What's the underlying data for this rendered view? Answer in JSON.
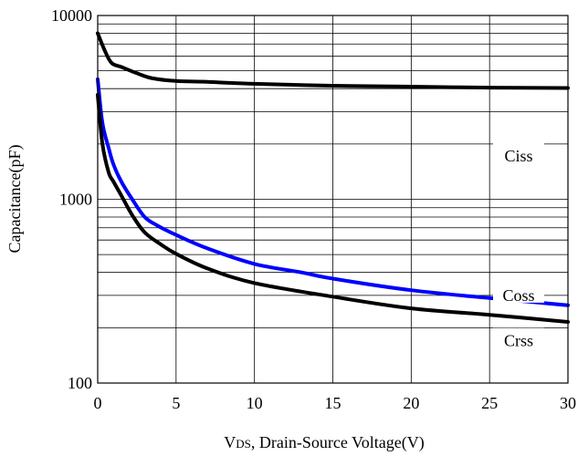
{
  "chart_data": {
    "type": "line",
    "title": "",
    "xlabel": "VDS, Drain-Source Voltage(V)",
    "xlabel_main": "V",
    "xlabel_sub": "DS",
    "xlabel_rest": ", Drain-Source Voltage(V)",
    "ylabel": "Capacitance(pF)",
    "xlim": [
      0,
      30
    ],
    "ylim": [
      100,
      10000
    ],
    "yscale": "log",
    "grid": true,
    "x_ticks": [
      0,
      5,
      10,
      15,
      20,
      25,
      30
    ],
    "x_tick_labels": [
      "0",
      "5",
      "10",
      "15",
      "20",
      "25",
      "30"
    ],
    "y_ticks": [
      100,
      1000,
      10000
    ],
    "y_tick_labels": [
      "100",
      "1000",
      "10000"
    ],
    "series": [
      {
        "name": "Ciss",
        "color": "#000000",
        "x": [
          0,
          0.5,
          0.9,
          1.5,
          2.5,
          3.5,
          5,
          7,
          10,
          15,
          20,
          25,
          30
        ],
        "y": [
          8000,
          6300,
          5500,
          5250,
          4850,
          4550,
          4400,
          4350,
          4250,
          4150,
          4100,
          4050,
          4030
        ]
      },
      {
        "name": "Coss",
        "color": "#0000ff",
        "x": [
          0,
          0.3,
          0.7,
          1,
          1.5,
          2.2,
          3,
          3.8,
          5,
          7,
          10,
          13,
          15,
          20,
          25,
          30
        ],
        "y": [
          4500,
          2600,
          1900,
          1550,
          1250,
          1000,
          800,
          720,
          640,
          540,
          445,
          400,
          370,
          320,
          290,
          265
        ]
      },
      {
        "name": "Crss",
        "color": "#000000",
        "x": [
          0,
          0.3,
          0.7,
          1,
          1.5,
          2.2,
          3,
          4,
          5,
          7,
          10,
          15,
          20,
          25,
          30
        ],
        "y": [
          3700,
          2000,
          1400,
          1250,
          1050,
          820,
          660,
          570,
          505,
          420,
          350,
          295,
          255,
          235,
          215
        ]
      }
    ]
  }
}
